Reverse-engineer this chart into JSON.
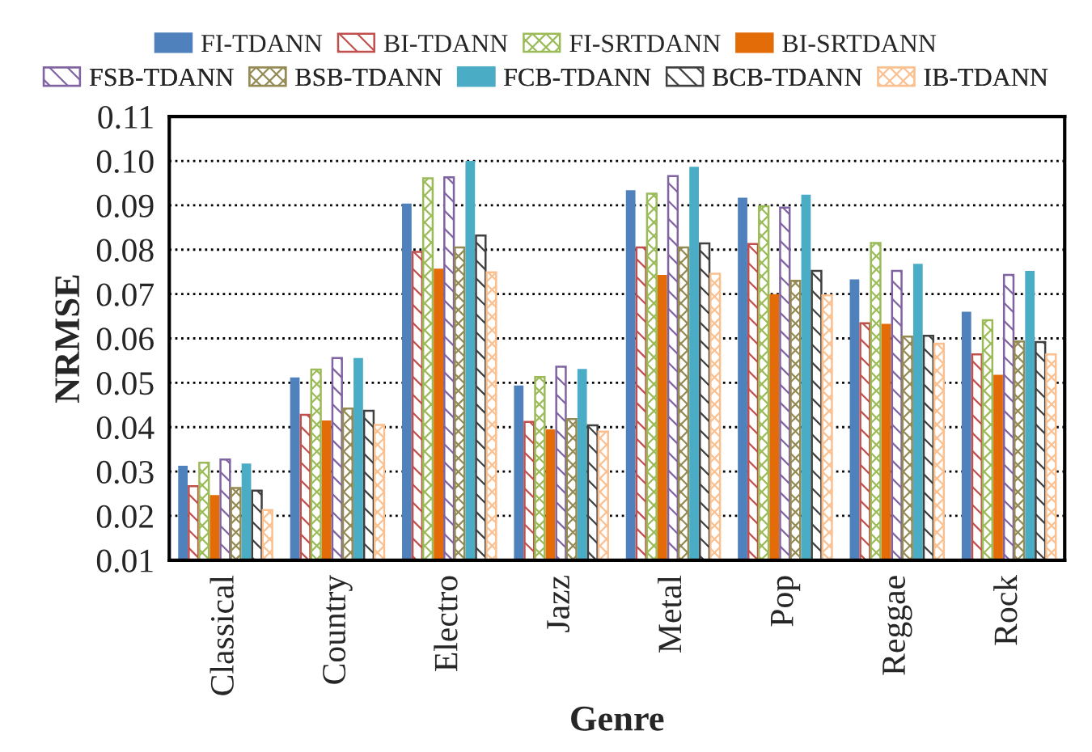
{
  "chart_data": {
    "type": "bar",
    "xlabel": "Genre",
    "ylabel": "NRMSE",
    "categories": [
      "Classical",
      "Country",
      "Electro",
      "Jazz",
      "Metal",
      "Pop",
      "Reggae",
      "Rock"
    ],
    "ylim": [
      0.01,
      0.11
    ],
    "yticks": [
      {
        "value": 0.01,
        "label": "0.01"
      },
      {
        "value": 0.02,
        "label": "0.02"
      },
      {
        "value": 0.03,
        "label": "0.03"
      },
      {
        "value": 0.04,
        "label": "0.04"
      },
      {
        "value": 0.05,
        "label": "0.05"
      },
      {
        "value": 0.06,
        "label": "0.06"
      },
      {
        "value": 0.07,
        "label": "0.07"
      },
      {
        "value": 0.08,
        "label": "0.08"
      },
      {
        "value": 0.09,
        "label": "0.09"
      },
      {
        "value": 0.1,
        "label": "0.10"
      },
      {
        "value": 0.11,
        "label": "0.11"
      }
    ],
    "grid": "y",
    "legend": "top",
    "series": [
      {
        "name": "FI-TDANN",
        "color": "#4f81bd",
        "values": [
          0.0313,
          0.0512,
          0.0904,
          0.0494,
          0.0934,
          0.0917,
          0.0733,
          0.066
        ]
      },
      {
        "name": "BI-TDANN",
        "color": "#c0504d",
        "values": [
          0.0267,
          0.0428,
          0.0795,
          0.0412,
          0.0805,
          0.0813,
          0.0634,
          0.0564
        ]
      },
      {
        "name": "FI-SRTDANN",
        "color": "#9bbb59",
        "values": [
          0.032,
          0.053,
          0.0961,
          0.0513,
          0.0926,
          0.0898,
          0.0815,
          0.0641
        ]
      },
      {
        "name": "BI-SRTDANN",
        "color": "#e36c09",
        "values": [
          0.0247,
          0.0415,
          0.0757,
          0.0395,
          0.0743,
          0.07,
          0.0633,
          0.0518
        ]
      },
      {
        "name": "FSB-TDANN",
        "color": "#8064a2",
        "values": [
          0.0327,
          0.0556,
          0.0963,
          0.0536,
          0.0966,
          0.0895,
          0.0752,
          0.0743
        ]
      },
      {
        "name": "BSB-TDANN",
        "color": "#948a54",
        "values": [
          0.0263,
          0.0442,
          0.0805,
          0.0418,
          0.0805,
          0.073,
          0.0604,
          0.0593
        ]
      },
      {
        "name": "FCB-TDANN",
        "color": "#4bacc6",
        "values": [
          0.0318,
          0.0556,
          0.1,
          0.0531,
          0.0987,
          0.0924,
          0.0768,
          0.0752
        ]
      },
      {
        "name": "BCB-TDANN",
        "color": "#404040",
        "values": [
          0.0257,
          0.0437,
          0.0832,
          0.0404,
          0.0814,
          0.0752,
          0.0606,
          0.0592
        ]
      },
      {
        "name": "IB-TDANN",
        "color": "#fac090",
        "values": [
          0.0213,
          0.0405,
          0.0749,
          0.039,
          0.0746,
          0.0697,
          0.0588,
          0.0564
        ]
      }
    ]
  }
}
